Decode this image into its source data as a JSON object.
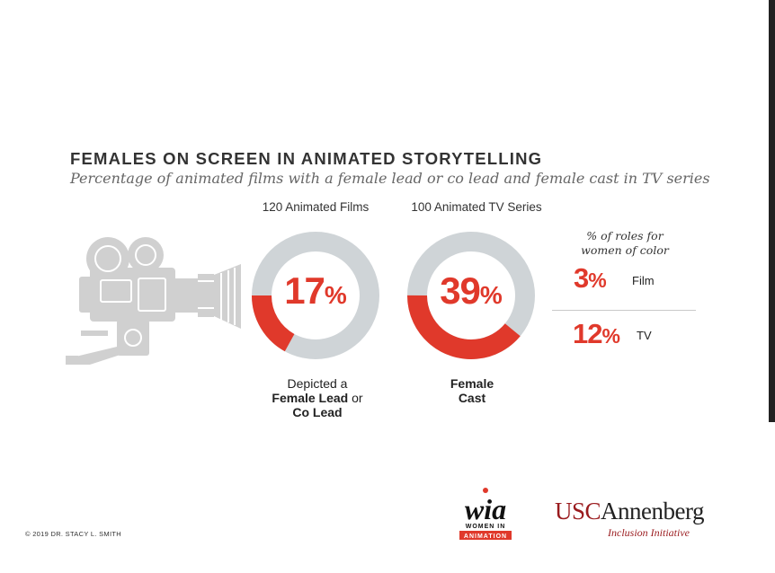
{
  "title": "FEMALES ON SCREEN IN ANIMATED STORYTELLING",
  "subtitle": "Percentage of animated films with a female lead or co lead and female cast in TV series",
  "colors": {
    "accent": "#e0392b",
    "track": "#cfd4d7",
    "icon": "#d0d0d0"
  },
  "icons": {
    "camera": "film-camera-icon"
  },
  "chart_data": [
    {
      "type": "pie",
      "title": "120 Animated Films",
      "value": 17,
      "display": "17",
      "unit": "%",
      "caption": {
        "line1": "Depicted a",
        "bold1": "Female Lead",
        "mid": " or",
        "bold2": "Co Lead"
      }
    },
    {
      "type": "pie",
      "title": "100 Animated TV Series",
      "value": 39,
      "display": "39",
      "unit": "%",
      "caption": {
        "bold1": "Female",
        "bold2": "Cast"
      }
    },
    {
      "type": "table",
      "title": "% of roles for women of color",
      "rows": [
        {
          "value": 3,
          "display": "3",
          "unit": "%",
          "label": "Film"
        },
        {
          "value": 12,
          "display": "12",
          "unit": "%",
          "label": "TV"
        }
      ]
    }
  ],
  "footer": {
    "copyright": "© 2019 DR. STACY L. SMITH",
    "wia_logo": {
      "mark": "wia",
      "line1": "WOMEN IN",
      "line2": "ANIMATION"
    },
    "usc_logo": {
      "usc": "USC",
      "annenberg": "Annenberg",
      "sub": "Inclusion Initiative"
    }
  }
}
